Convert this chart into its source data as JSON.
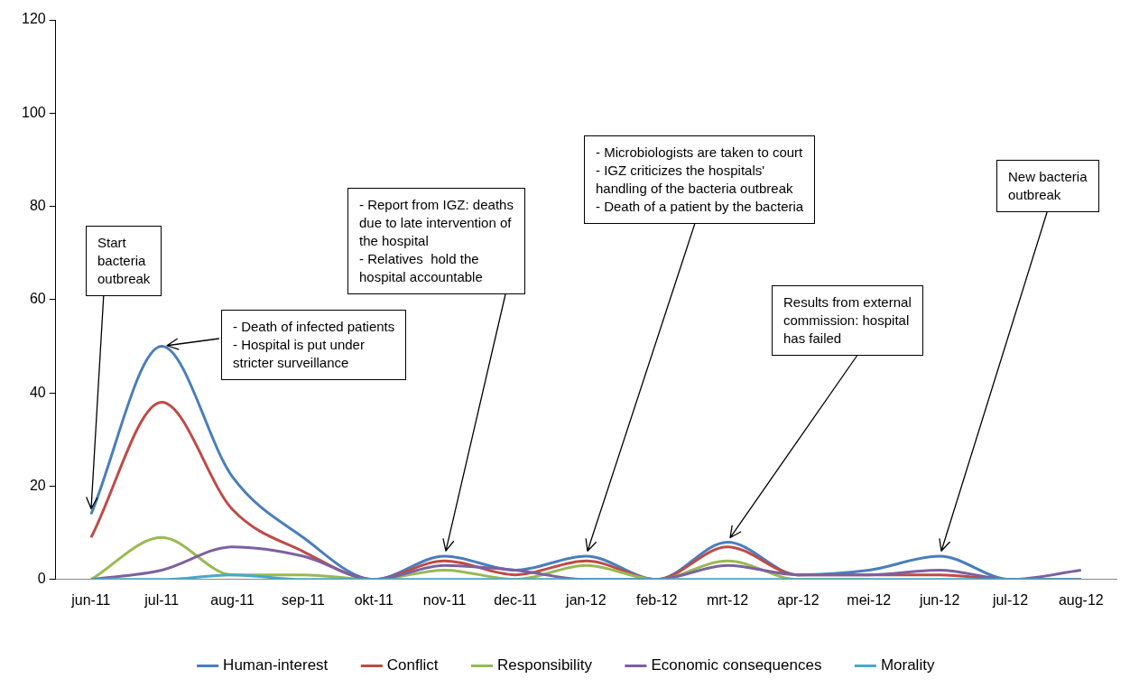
{
  "chart_data": {
    "type": "line",
    "categories": [
      "jun-11",
      "jul-11",
      "aug-11",
      "sep-11",
      "okt-11",
      "nov-11",
      "dec-11",
      "jan-12",
      "feb-12",
      "mrt-12",
      "apr-12",
      "mei-12",
      "jun-12",
      "jul-12",
      "aug-12"
    ],
    "series": [
      {
        "name": "Human-interest",
        "color": "#4a7ebb",
        "values": [
          14,
          50,
          22,
          9,
          0,
          5,
          2,
          5,
          0,
          8,
          1,
          2,
          5,
          0,
          0
        ]
      },
      {
        "name": "Conflict",
        "color": "#be4b48",
        "values": [
          9,
          38,
          15,
          6,
          0,
          4,
          1,
          4,
          0,
          7,
          1,
          1,
          1,
          0,
          0
        ]
      },
      {
        "name": "Responsibility",
        "color": "#98b954",
        "values": [
          0,
          9,
          1,
          1,
          0,
          2,
          0,
          3,
          0,
          4,
          0,
          0,
          null,
          null,
          null
        ]
      },
      {
        "name": "Economic consequences",
        "color": "#7d60a0",
        "values": [
          0,
          2,
          7,
          5,
          0,
          3,
          2,
          0,
          0,
          3,
          1,
          1,
          2,
          0,
          2
        ]
      },
      {
        "name": "Morality",
        "color": "#46aac5",
        "values": [
          0,
          0,
          1,
          0,
          0,
          0,
          0,
          0,
          0,
          0,
          0,
          0,
          0,
          0,
          0
        ]
      }
    ],
    "ylim": [
      0,
      120
    ],
    "yticks": [
      0,
      20,
      40,
      60,
      80,
      100,
      120
    ],
    "grid": false,
    "legend": "bottom",
    "marker": "none",
    "line_style": "solid",
    "annotations": [
      {
        "text": "Start\nbacteria\noutbreak",
        "x": "jun-11",
        "y": 14
      },
      {
        "text": "- Death of infected patients\n- Hospital is put under\nstricter surveillance",
        "x": "jul-11",
        "y": 50
      },
      {
        "text": "- Report from IGZ: deaths\ndue to late intervention of\nthe hospital\n- Relatives  hold the\nhospital accountable",
        "x": "nov-11",
        "y": 5
      },
      {
        "text": "- Microbiologists are taken to court\n- IGZ criticizes the hospitals'\nhandling of the bacteria outbreak\n- Death of a patient by the bacteria",
        "x": "jan-12",
        "y": 5
      },
      {
        "text": "Results from external\ncommission: hospital\nhas failed",
        "x": "mrt-12",
        "y": 8
      },
      {
        "text": "New bacteria\noutbreak",
        "x": "jun-12",
        "y": 5
      }
    ]
  }
}
